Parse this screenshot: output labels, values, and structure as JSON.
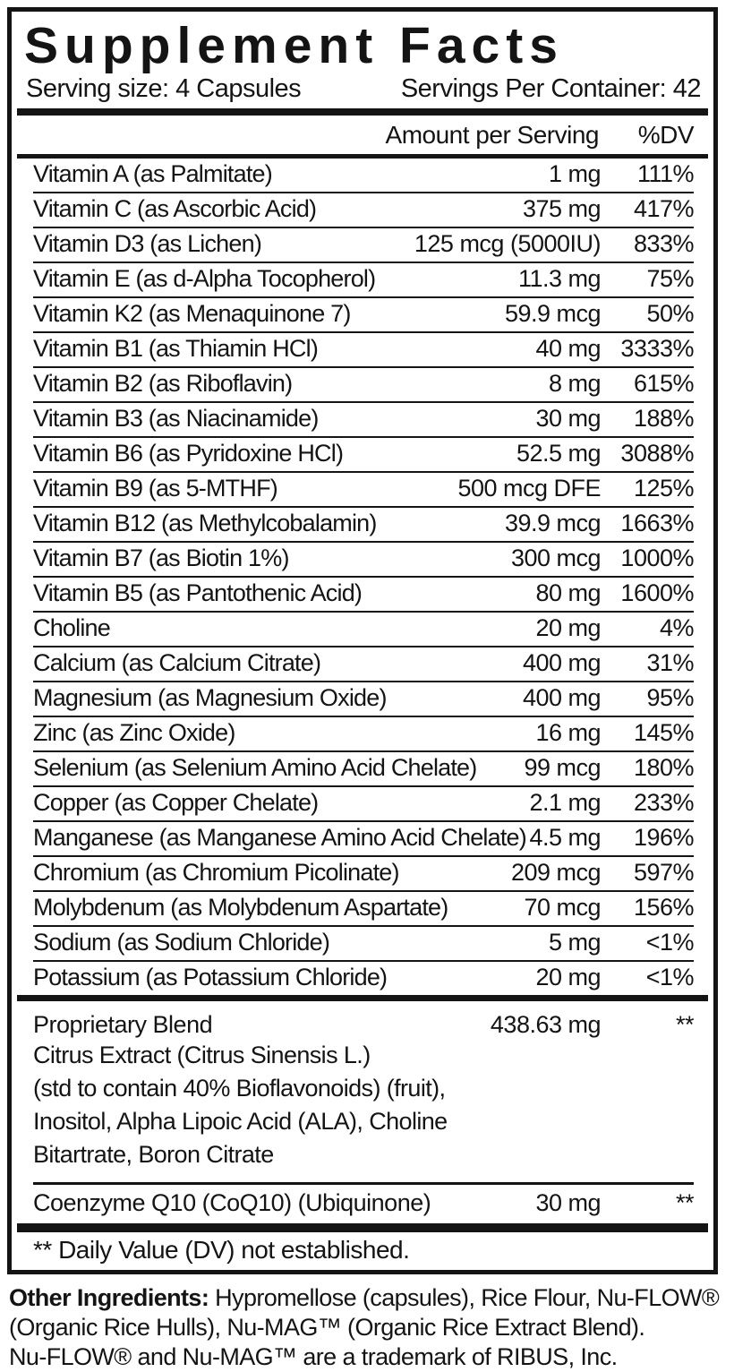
{
  "title": "Supplement Facts",
  "serving": {
    "size": "Serving size: 4 Capsules",
    "per_container": "Servings Per Container: 42"
  },
  "columns": {
    "amount": "Amount per Serving",
    "dv": "%DV"
  },
  "nutrients": [
    {
      "name": "Vitamin A (as Palmitate)",
      "amount": "1 mg",
      "dv": "111%"
    },
    {
      "name": "Vitamin C (as Ascorbic Acid)",
      "amount": "375 mg",
      "dv": "417%"
    },
    {
      "name": "Vitamin D3 (as Lichen)",
      "amount": "125 mcg (5000IU)",
      "dv": "833%"
    },
    {
      "name": "Vitamin E (as d-Alpha Tocopherol)",
      "amount": "11.3 mg",
      "dv": "75%"
    },
    {
      "name": "Vitamin K2 (as Menaquinone 7)",
      "amount": "59.9 mcg",
      "dv": "50%"
    },
    {
      "name": "Vitamin B1 (as Thiamin HCl)",
      "amount": "40 mg",
      "dv": "3333%"
    },
    {
      "name": "Vitamin B2 (as Riboflavin)",
      "amount": "8 mg",
      "dv": "615%"
    },
    {
      "name": "Vitamin B3 (as Niacinamide)",
      "amount": "30 mg",
      "dv": "188%"
    },
    {
      "name": "Vitamin B6 (as Pyridoxine HCl)",
      "amount": "52.5 mg",
      "dv": "3088%"
    },
    {
      "name": "Vitamin B9 (as 5-MTHF)",
      "amount": "500 mcg DFE",
      "dv": "125%"
    },
    {
      "name": "Vitamin B12 (as Methylcobalamin)",
      "amount": "39.9 mcg",
      "dv": "1663%"
    },
    {
      "name": "Vitamin B7 (as Biotin 1%)",
      "amount": "300 mcg",
      "dv": "1000%"
    },
    {
      "name": "Vitamin B5 (as Pantothenic Acid)",
      "amount": "80 mg",
      "dv": "1600%"
    },
    {
      "name": "Choline",
      "amount": "20 mg",
      "dv": "4%"
    },
    {
      "name": "Calcium (as Calcium Citrate)",
      "amount": "400 mg",
      "dv": "31%"
    },
    {
      "name": "Magnesium (as Magnesium Oxide)",
      "amount": "400 mg",
      "dv": "95%"
    },
    {
      "name": "Zinc (as Zinc Oxide)",
      "amount": "16 mg",
      "dv": "145%"
    },
    {
      "name": "Selenium (as Selenium Amino Acid Chelate)",
      "amount": "99 mcg",
      "dv": "180%"
    },
    {
      "name": "Copper (as Copper Chelate)",
      "amount": "2.1 mg",
      "dv": "233%"
    },
    {
      "name": "Manganese (as Manganese Amino Acid Chelate)",
      "amount": "4.5 mg",
      "dv": "196%"
    },
    {
      "name": "Chromium (as Chromium Picolinate)",
      "amount": "209 mcg",
      "dv": "597%"
    },
    {
      "name": "Molybdenum (as Molybdenum Aspartate)",
      "amount": "70 mcg",
      "dv": "156%"
    },
    {
      "name": "Sodium (as Sodium Chloride)",
      "amount": "5 mg",
      "dv": "<1%"
    },
    {
      "name": "Potassium (as Potassium Chloride)",
      "amount": "20 mg",
      "dv": "<1%"
    }
  ],
  "proprietary_blend": {
    "name": "Proprietary Blend",
    "amount": "438.63 mg",
    "dv": "**",
    "description_lines": [
      "Citrus Extract (Citrus Sinensis L.)",
      "(std to contain 40% Bioflavonoids) (fruit),",
      "Inositol, Alpha Lipoic Acid (ALA), Choline",
      "Bitartrate, Boron Citrate"
    ]
  },
  "coq10": {
    "name": "Coenzyme Q10 (CoQ10) (Ubiquinone)",
    "amount": "30 mg",
    "dv": "**"
  },
  "footnote": "** Daily Value (DV) not established.",
  "other_ingredients": {
    "label": "Other Ingredients:",
    "line1": "Hypromellose (capsules), Rice Flour, Nu-FLOW®",
    "line2": "(Organic Rice Hulls), Nu-MAG™ (Organic Rice Extract Blend).",
    "line3": "Nu-FLOW® and Nu-MAG™ are a trademark of RIBUS, Inc."
  },
  "colors": {
    "ink": "#141414",
    "paper": "#ffffff"
  }
}
